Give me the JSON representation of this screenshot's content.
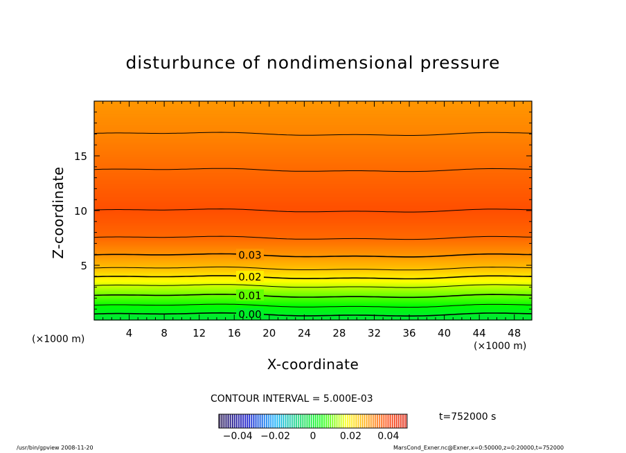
{
  "title": "disturbunce of nondimensional pressure",
  "contour_interval": "CONTOUR INTERVAL = 5.000E-03",
  "time_label": "t=752000 s",
  "footer_left": "/usr/bin/gpview   2008-11-20",
  "footer_right": "MarsCond_Exner.nc@Exner,x=0:50000,z=0:20000,t=752000",
  "colors": {
    "green": "#00ff00",
    "yellow": "#ffff00",
    "orange": "#ff6600",
    "red": "#ff2200"
  },
  "chart_data": {
    "type": "contour",
    "title": "disturbunce of nondimensional pressure",
    "xlabel": "X-coordinate",
    "ylabel": "Z-coordinate",
    "x_unit": "(×1000 m)",
    "y_unit": "(×1000 m)",
    "xlim": [
      0,
      50
    ],
    "ylim": [
      0,
      20
    ],
    "x_ticks": [
      4,
      8,
      12,
      16,
      20,
      24,
      28,
      32,
      36,
      40,
      44,
      48
    ],
    "y_ticks": [
      5,
      10,
      15
    ],
    "contour_interval": 0.005,
    "labeled_contours": [
      {
        "label": "0.00",
        "value": 0.0,
        "z": 0.5
      },
      {
        "label": "0.01",
        "value": 0.01,
        "z": 2.2
      },
      {
        "label": "0.02",
        "value": 0.02,
        "z": 3.9
      },
      {
        "label": "0.03",
        "value": 0.03,
        "z": 5.9
      }
    ],
    "vertical_profile": [
      {
        "z": 0.0,
        "value": -0.002
      },
      {
        "z": 0.5,
        "value": 0.0
      },
      {
        "z": 1.3,
        "value": 0.005
      },
      {
        "z": 2.2,
        "value": 0.01
      },
      {
        "z": 3.1,
        "value": 0.015
      },
      {
        "z": 3.9,
        "value": 0.02
      },
      {
        "z": 4.7,
        "value": 0.025
      },
      {
        "z": 5.9,
        "value": 0.03
      },
      {
        "z": 7.5,
        "value": 0.035
      },
      {
        "z": 10.0,
        "value": 0.038
      },
      {
        "z": 13.7,
        "value": 0.035
      },
      {
        "z": 17.0,
        "value": 0.032
      },
      {
        "z": 20.0,
        "value": 0.03
      }
    ],
    "colorbar": {
      "min": -0.05,
      "max": 0.05,
      "ticks": [
        -0.04,
        -0.02,
        0,
        0.02,
        0.04
      ],
      "tick_labels": [
        "−0.04",
        "−0.02",
        "0",
        "0.02",
        "0.04"
      ]
    }
  }
}
